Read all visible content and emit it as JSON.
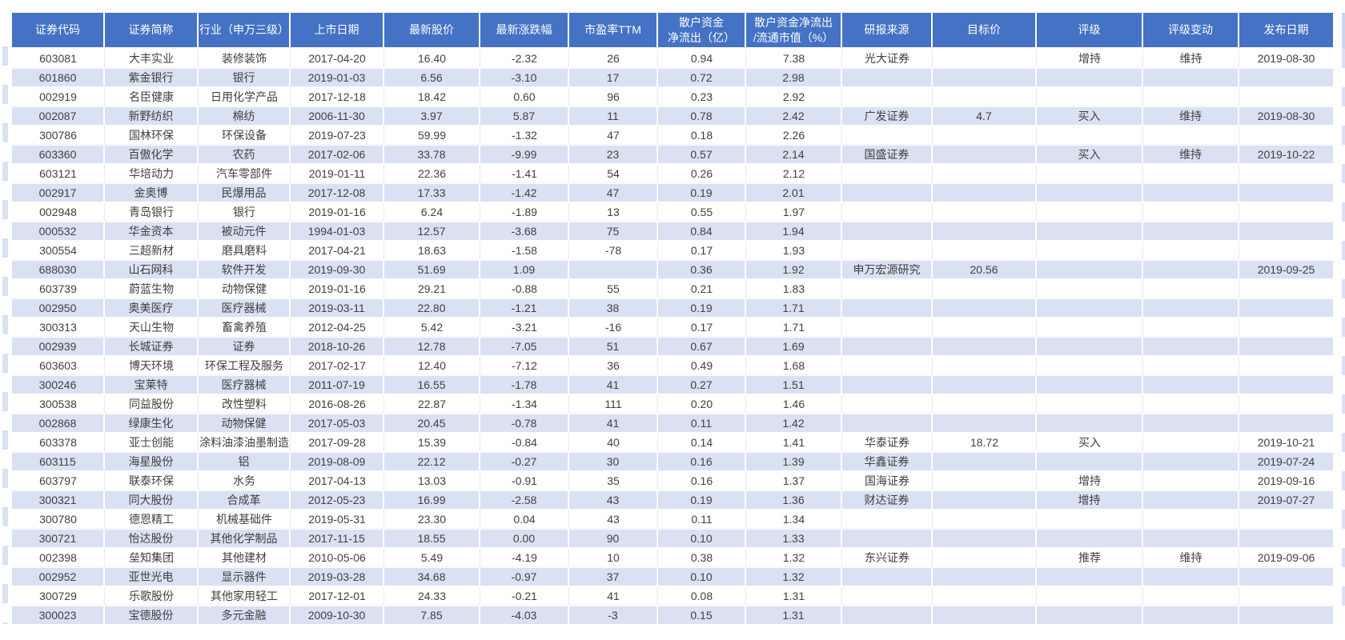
{
  "colors": {
    "header_bg": "#4472C4",
    "band_row_bg": "#D9E1F2",
    "plain_row_bg": "#FFFFFF",
    "header_text": "#FFFFFF",
    "body_text": "#404040"
  },
  "table": {
    "columns": [
      "证券代码",
      "证券简称",
      "行业（申万三级）",
      "上市日期",
      "最新股价",
      "最新涨跌幅",
      "市盈率TTM",
      "散户资金\n净流出（亿）",
      "散户资金净流出\n/流通市值（%）",
      "研报来源",
      "目标价",
      "评级",
      "评级变动",
      "发布日期"
    ],
    "rows": [
      [
        "603081",
        "大丰实业",
        "装修装饰",
        "2017-04-20",
        "16.40",
        "-2.32",
        "26",
        "0.94",
        "7.38",
        "光大证券",
        "",
        "增持",
        "维持",
        "2019-08-30"
      ],
      [
        "601860",
        "紫金银行",
        "银行",
        "2019-01-03",
        "6.56",
        "-3.10",
        "17",
        "0.72",
        "2.98",
        "",
        "",
        "",
        "",
        ""
      ],
      [
        "002919",
        "名臣健康",
        "日用化学产品",
        "2017-12-18",
        "18.42",
        "0.60",
        "96",
        "0.23",
        "2.92",
        "",
        "",
        "",
        "",
        ""
      ],
      [
        "002087",
        "新野纺织",
        "棉纺",
        "2006-11-30",
        "3.97",
        "5.87",
        "11",
        "0.78",
        "2.42",
        "广发证券",
        "4.7",
        "买入",
        "维持",
        "2019-08-30"
      ],
      [
        "300786",
        "国林环保",
        "环保设备",
        "2019-07-23",
        "59.99",
        "-1.32",
        "47",
        "0.18",
        "2.26",
        "",
        "",
        "",
        "",
        ""
      ],
      [
        "603360",
        "百傲化学",
        "农药",
        "2017-02-06",
        "33.78",
        "-9.99",
        "23",
        "0.57",
        "2.14",
        "国盛证券",
        "",
        "买入",
        "维持",
        "2019-10-22"
      ],
      [
        "603121",
        "华培动力",
        "汽车零部件",
        "2019-01-11",
        "22.36",
        "-1.41",
        "54",
        "0.26",
        "2.12",
        "",
        "",
        "",
        "",
        ""
      ],
      [
        "002917",
        "金奥博",
        "民爆用品",
        "2017-12-08",
        "17.33",
        "-1.42",
        "47",
        "0.19",
        "2.01",
        "",
        "",
        "",
        "",
        ""
      ],
      [
        "002948",
        "青岛银行",
        "银行",
        "2019-01-16",
        "6.24",
        "-1.89",
        "13",
        "0.55",
        "1.97",
        "",
        "",
        "",
        "",
        ""
      ],
      [
        "000532",
        "华金资本",
        "被动元件",
        "1994-01-03",
        "12.57",
        "-3.68",
        "75",
        "0.84",
        "1.94",
        "",
        "",
        "",
        "",
        ""
      ],
      [
        "300554",
        "三超新材",
        "磨具磨料",
        "2017-04-21",
        "18.63",
        "-1.58",
        "-78",
        "0.17",
        "1.93",
        "",
        "",
        "",
        "",
        ""
      ],
      [
        "688030",
        "山石网科",
        "软件开发",
        "2019-09-30",
        "51.69",
        "1.09",
        "",
        "0.36",
        "1.92",
        "申万宏源研究",
        "20.56",
        "",
        "",
        "2019-09-25"
      ],
      [
        "603739",
        "蔚蓝生物",
        "动物保健",
        "2019-01-16",
        "29.21",
        "-0.88",
        "55",
        "0.21",
        "1.83",
        "",
        "",
        "",
        "",
        ""
      ],
      [
        "002950",
        "奥美医疗",
        "医疗器械",
        "2019-03-11",
        "22.80",
        "-1.21",
        "38",
        "0.19",
        "1.71",
        "",
        "",
        "",
        "",
        ""
      ],
      [
        "300313",
        "天山生物",
        "畜禽养殖",
        "2012-04-25",
        "5.42",
        "-3.21",
        "-16",
        "0.17",
        "1.71",
        "",
        "",
        "",
        "",
        ""
      ],
      [
        "002939",
        "长城证券",
        "证券",
        "2018-10-26",
        "12.78",
        "-7.05",
        "51",
        "0.67",
        "1.69",
        "",
        "",
        "",
        "",
        ""
      ],
      [
        "603603",
        "博天环境",
        "环保工程及服务",
        "2017-02-17",
        "12.40",
        "-7.12",
        "36",
        "0.49",
        "1.68",
        "",
        "",
        "",
        "",
        ""
      ],
      [
        "300246",
        "宝莱特",
        "医疗器械",
        "2011-07-19",
        "16.55",
        "-1.78",
        "41",
        "0.27",
        "1.51",
        "",
        "",
        "",
        "",
        ""
      ],
      [
        "300538",
        "同益股份",
        "改性塑料",
        "2016-08-26",
        "22.87",
        "-1.34",
        "111",
        "0.20",
        "1.46",
        "",
        "",
        "",
        "",
        ""
      ],
      [
        "002868",
        "绿康生化",
        "动物保健",
        "2017-05-03",
        "20.45",
        "-0.78",
        "41",
        "0.11",
        "1.42",
        "",
        "",
        "",
        "",
        ""
      ],
      [
        "603378",
        "亚士创能",
        "涂料油漆油墨制造",
        "2017-09-28",
        "15.39",
        "-0.84",
        "40",
        "0.14",
        "1.41",
        "华泰证券",
        "18.72",
        "买入",
        "",
        "2019-10-21"
      ],
      [
        "603115",
        "海星股份",
        "铝",
        "2019-08-09",
        "22.12",
        "-0.27",
        "30",
        "0.16",
        "1.39",
        "华鑫证券",
        "",
        "",
        "",
        "2019-07-24"
      ],
      [
        "603797",
        "联泰环保",
        "水务",
        "2017-04-13",
        "13.03",
        "-0.91",
        "35",
        "0.16",
        "1.37",
        "国海证券",
        "",
        "增持",
        "",
        "2019-09-16"
      ],
      [
        "300321",
        "同大股份",
        "合成革",
        "2012-05-23",
        "16.99",
        "-2.58",
        "43",
        "0.19",
        "1.36",
        "财达证券",
        "",
        "增持",
        "",
        "2019-07-27"
      ],
      [
        "300780",
        "德恩精工",
        "机械基础件",
        "2019-05-31",
        "23.30",
        "0.04",
        "43",
        "0.11",
        "1.34",
        "",
        "",
        "",
        "",
        ""
      ],
      [
        "300721",
        "怡达股份",
        "其他化学制品",
        "2017-11-15",
        "18.55",
        "0.00",
        "90",
        "0.10",
        "1.33",
        "",
        "",
        "",
        "",
        ""
      ],
      [
        "002398",
        "垒知集团",
        "其他建材",
        "2010-05-06",
        "5.49",
        "-4.19",
        "10",
        "0.38",
        "1.32",
        "东兴证券",
        "",
        "推荐",
        "维持",
        "2019-09-06"
      ],
      [
        "002952",
        "亚世光电",
        "显示器件",
        "2019-03-28",
        "34.68",
        "-0.97",
        "37",
        "0.10",
        "1.32",
        "",
        "",
        "",
        "",
        ""
      ],
      [
        "300729",
        "乐歌股份",
        "其他家用轻工",
        "2017-12-01",
        "24.33",
        "-0.21",
        "41",
        "0.08",
        "1.31",
        "",
        "",
        "",
        "",
        ""
      ],
      [
        "300023",
        "宝德股份",
        "多元金融",
        "2009-10-30",
        "7.85",
        "-4.03",
        "-3",
        "0.15",
        "1.31",
        "",
        "",
        "",
        "",
        ""
      ]
    ]
  }
}
